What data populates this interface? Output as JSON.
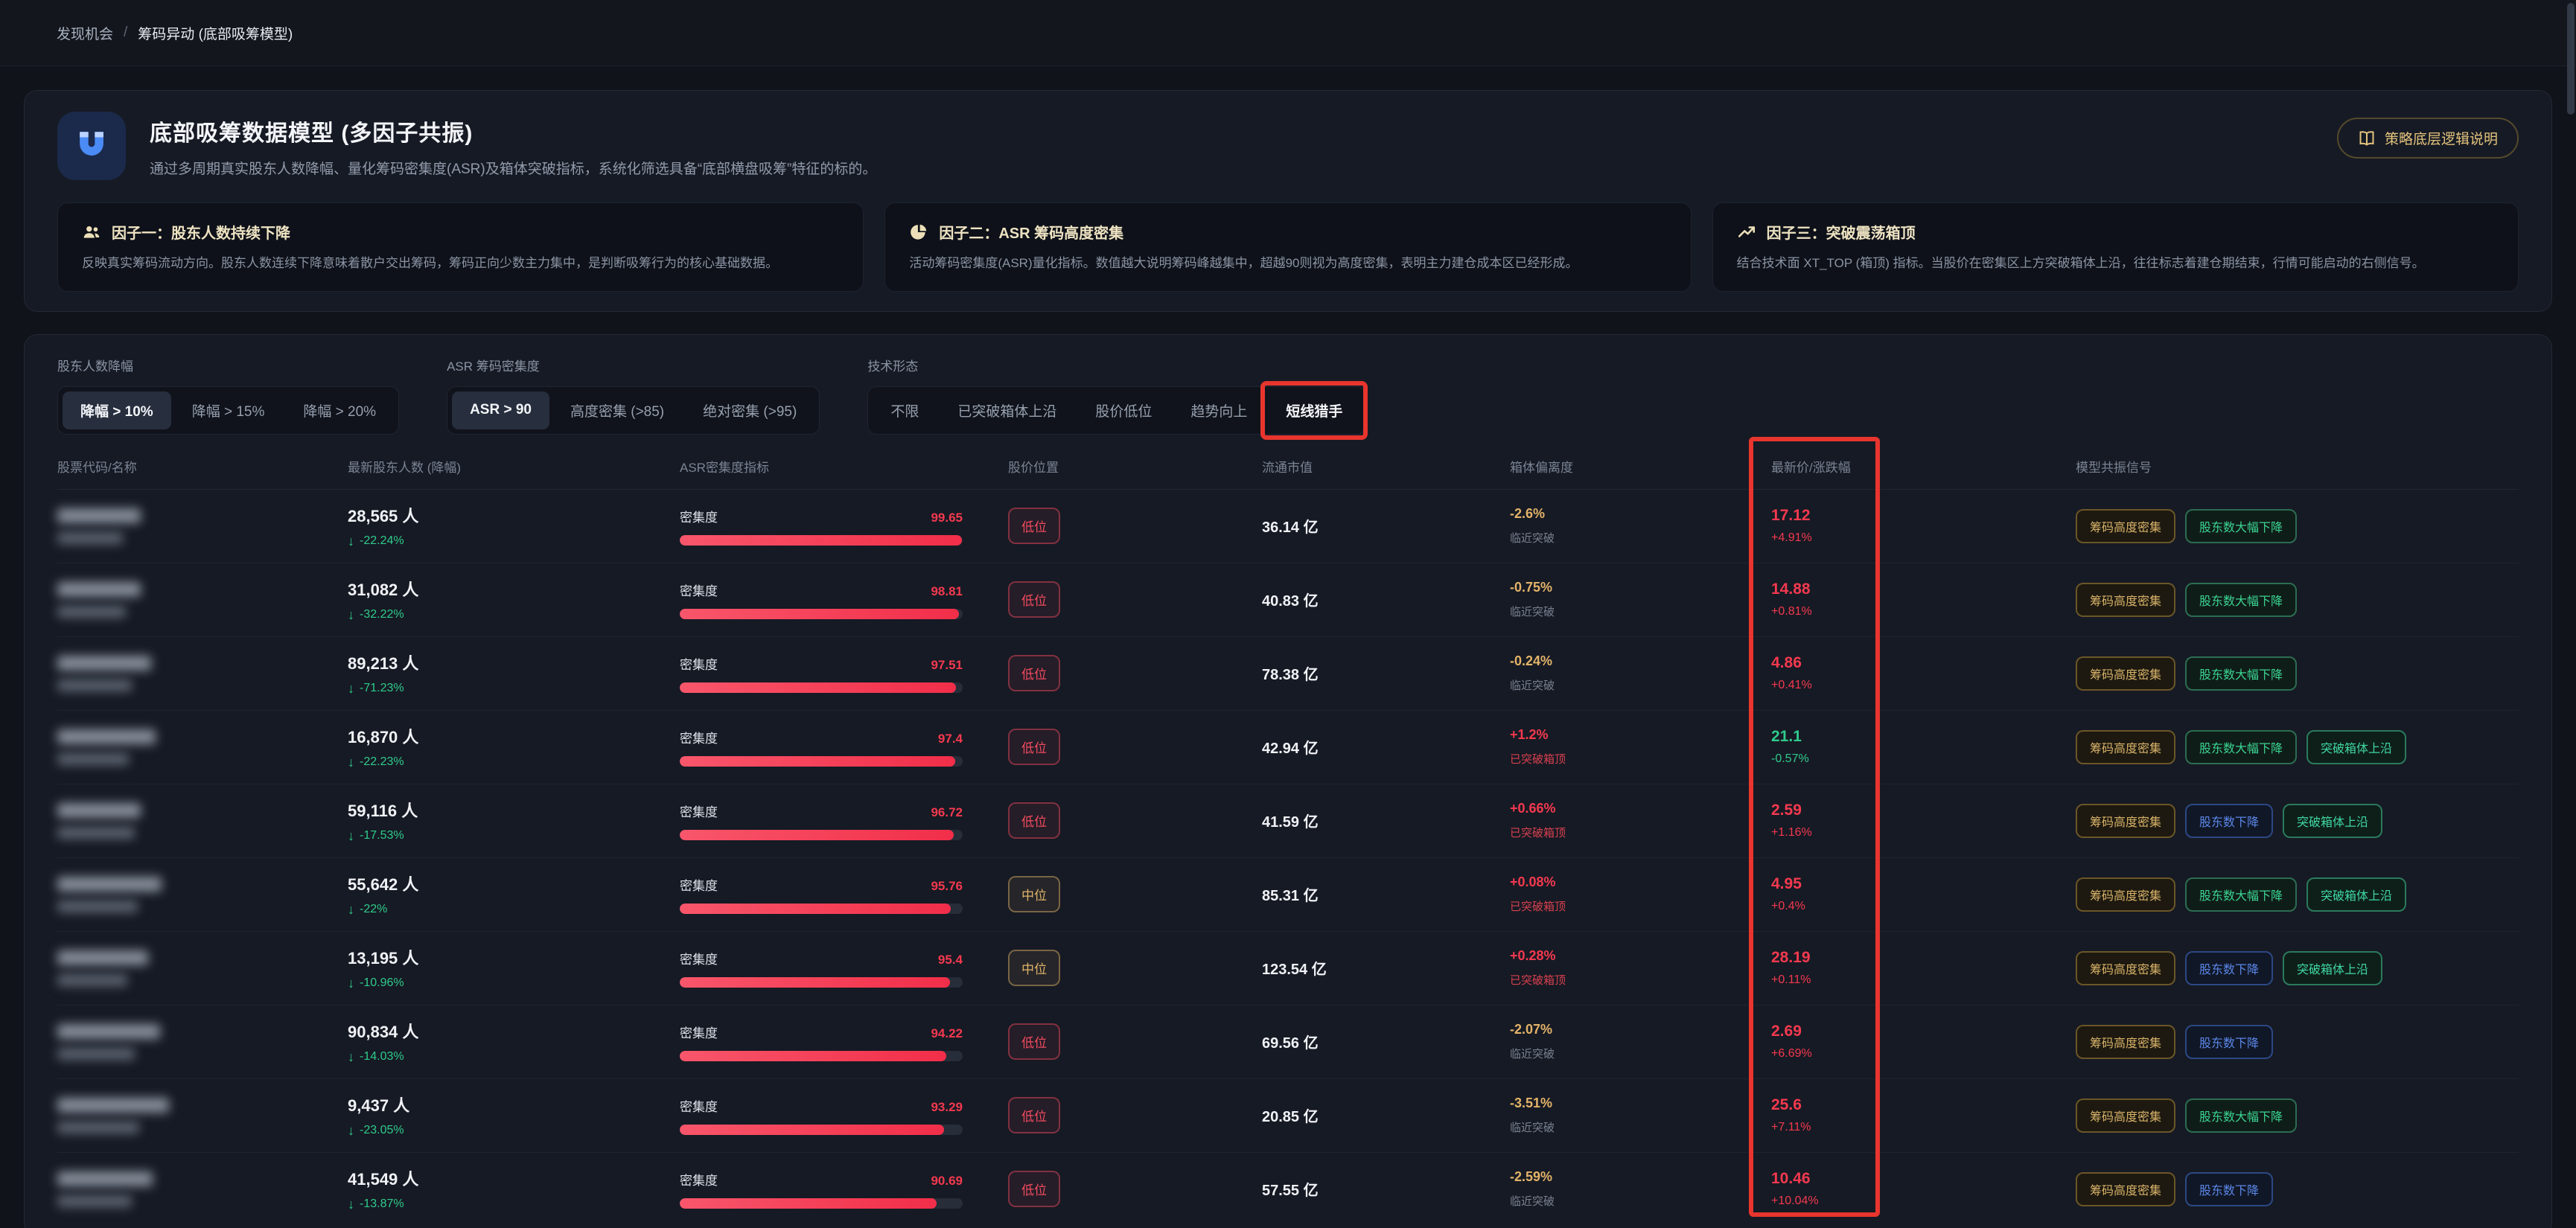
{
  "breadcrumb": {
    "section": "发现机会",
    "separator": "/",
    "page": "筹码异动 (底部吸筹模型)"
  },
  "header": {
    "icon": "magnet-icon",
    "title": "底部吸筹数据模型 (多因子共振)",
    "subtitle": "通过多周期真实股东人数降幅、量化筹码密集度(ASR)及箱体突破指标，系统化筛选具备“底部横盘吸筹”特征的标的。",
    "doc_button": "策略底层逻辑说明",
    "doc_button_icon": "book-icon"
  },
  "factors": [
    {
      "icon": "users-icon",
      "title": "因子一：股东人数持续下降",
      "desc": "反映真实筹码流动方向。股东人数连续下降意味着散户交出筹码，筹码正向少数主力集中，是判断吸筹行为的核心基础数据。"
    },
    {
      "icon": "pie-chart-icon",
      "title": "因子二：ASR 筹码高度密集",
      "desc": "活动筹码密集度(ASR)量化指标。数值越大说明筹码峰越集中，超越90则视为高度密集，表明主力建仓成本区已经形成。"
    },
    {
      "icon": "trend-up-icon",
      "title": "因子三：突破震荡箱顶",
      "desc": "结合技术面 XT_TOP (箱顶) 指标。当股价在密集区上方突破箱体上沿，往往标志着建仓期结束，行情可能启动的右侧信号。"
    }
  ],
  "filters": [
    {
      "label": "股东人数降幅",
      "options": [
        {
          "text": "降幅 > 10%",
          "active": true
        },
        {
          "text": "降幅 > 15%"
        },
        {
          "text": "降幅 > 20%"
        }
      ]
    },
    {
      "label": "ASR 筹码密集度",
      "options": [
        {
          "text": "ASR > 90",
          "active": true
        },
        {
          "text": "高度密集 (>85)"
        },
        {
          "text": "绝对密集 (>95)"
        }
      ]
    },
    {
      "label": "技术形态",
      "options": [
        {
          "text": "不限"
        },
        {
          "text": "已突破箱体上沿"
        },
        {
          "text": "股价低位"
        },
        {
          "text": "趋势向上"
        },
        {
          "text": "短线猎手",
          "highlighted": true,
          "annotated": true
        }
      ]
    }
  ],
  "table": {
    "columns": [
      "股票代码/名称",
      "最新股东人数 (降幅)",
      "ASR密集度指标",
      "股价位置",
      "流通市值",
      "箱体偏离度",
      "最新价/涨跌幅",
      "模型共振信号"
    ],
    "asr_label": "密集度",
    "names_redacted": true,
    "rows": [
      {
        "holders": "28,565 人",
        "holders_change": "-22.24%",
        "asr": "99.65",
        "position": "低位",
        "position_level": "low",
        "cap": "36.14 亿",
        "deviation": "-2.6%",
        "deviation_note": "临近突破",
        "deviation_state": "near",
        "price": "17.12",
        "price_change": "+4.91%",
        "price_dir": "up",
        "signals": [
          {
            "text": "筹码高度密集",
            "type": "gold"
          },
          {
            "text": "股东数大幅下降",
            "type": "green"
          }
        ]
      },
      {
        "holders": "31,082 人",
        "holders_change": "-32.22%",
        "asr": "98.81",
        "position": "低位",
        "position_level": "low",
        "cap": "40.83 亿",
        "deviation": "-0.75%",
        "deviation_note": "临近突破",
        "deviation_state": "near",
        "price": "14.88",
        "price_change": "+0.81%",
        "price_dir": "up",
        "signals": [
          {
            "text": "筹码高度密集",
            "type": "gold"
          },
          {
            "text": "股东数大幅下降",
            "type": "green"
          }
        ]
      },
      {
        "holders": "89,213 人",
        "holders_change": "-71.23%",
        "asr": "97.51",
        "position": "低位",
        "position_level": "low",
        "cap": "78.38 亿",
        "deviation": "-0.24%",
        "deviation_note": "临近突破",
        "deviation_state": "near",
        "price": "4.86",
        "price_change": "+0.41%",
        "price_dir": "up",
        "signals": [
          {
            "text": "筹码高度密集",
            "type": "gold"
          },
          {
            "text": "股东数大幅下降",
            "type": "green"
          }
        ]
      },
      {
        "holders": "16,870 人",
        "holders_change": "-22.23%",
        "asr": "97.4",
        "position": "低位",
        "position_level": "low",
        "cap": "42.94 亿",
        "deviation": "+1.2%",
        "deviation_note": "已突破箱顶",
        "deviation_state": "broken",
        "price": "21.1",
        "price_change": "-0.57%",
        "price_dir": "down",
        "signals": [
          {
            "text": "筹码高度密集",
            "type": "gold"
          },
          {
            "text": "股东数大幅下降",
            "type": "green"
          },
          {
            "text": "突破箱体上沿",
            "type": "teal"
          }
        ]
      },
      {
        "holders": "59,116 人",
        "holders_change": "-17.53%",
        "asr": "96.72",
        "position": "低位",
        "position_level": "low",
        "cap": "41.59 亿",
        "deviation": "+0.66%",
        "deviation_note": "已突破箱顶",
        "deviation_state": "broken",
        "price": "2.59",
        "price_change": "+1.16%",
        "price_dir": "up",
        "signals": [
          {
            "text": "筹码高度密集",
            "type": "gold"
          },
          {
            "text": "股东数下降",
            "type": "blue"
          },
          {
            "text": "突破箱体上沿",
            "type": "teal"
          }
        ]
      },
      {
        "holders": "55,642 人",
        "holders_change": "-22%",
        "asr": "95.76",
        "position": "中位",
        "position_level": "mid",
        "cap": "85.31 亿",
        "deviation": "+0.08%",
        "deviation_note": "已突破箱顶",
        "deviation_state": "broken",
        "price": "4.95",
        "price_change": "+0.4%",
        "price_dir": "up",
        "signals": [
          {
            "text": "筹码高度密集",
            "type": "gold"
          },
          {
            "text": "股东数大幅下降",
            "type": "green"
          },
          {
            "text": "突破箱体上沿",
            "type": "teal"
          }
        ]
      },
      {
        "holders": "13,195 人",
        "holders_change": "-10.96%",
        "asr": "95.4",
        "position": "中位",
        "position_level": "mid",
        "cap": "123.54 亿",
        "deviation": "+0.28%",
        "deviation_note": "已突破箱顶",
        "deviation_state": "broken",
        "price": "28.19",
        "price_change": "+0.11%",
        "price_dir": "up",
        "signals": [
          {
            "text": "筹码高度密集",
            "type": "gold"
          },
          {
            "text": "股东数下降",
            "type": "blue"
          },
          {
            "text": "突破箱体上沿",
            "type": "teal"
          }
        ]
      },
      {
        "holders": "90,834 人",
        "holders_change": "-14.03%",
        "asr": "94.22",
        "position": "低位",
        "position_level": "low",
        "cap": "69.56 亿",
        "deviation": "-2.07%",
        "deviation_note": "临近突破",
        "deviation_state": "near",
        "price": "2.69",
        "price_change": "+6.69%",
        "price_dir": "up",
        "signals": [
          {
            "text": "筹码高度密集",
            "type": "gold"
          },
          {
            "text": "股东数下降",
            "type": "blue"
          }
        ]
      },
      {
        "holders": "9,437 人",
        "holders_change": "-23.05%",
        "asr": "93.29",
        "position": "低位",
        "position_level": "low",
        "cap": "20.85 亿",
        "deviation": "-3.51%",
        "deviation_note": "临近突破",
        "deviation_state": "near",
        "price": "25.6",
        "price_change": "+7.11%",
        "price_dir": "up",
        "signals": [
          {
            "text": "筹码高度密集",
            "type": "gold"
          },
          {
            "text": "股东数大幅下降",
            "type": "green"
          }
        ]
      },
      {
        "holders": "41,549 人",
        "holders_change": "-13.87%",
        "asr": "90.69",
        "position": "低位",
        "position_level": "low",
        "cap": "57.55 亿",
        "deviation": "-2.59%",
        "deviation_note": "临近突破",
        "deviation_state": "near",
        "price": "10.46",
        "price_change": "+10.04%",
        "price_dir": "up",
        "signals": [
          {
            "text": "筹码高度密集",
            "type": "gold"
          },
          {
            "text": "股东数下降",
            "type": "blue"
          }
        ]
      }
    ]
  },
  "annotations": {
    "highlighted_filter": "短线猎手",
    "highlighted_column": "最新价/涨跌幅",
    "color": "#e8352e"
  },
  "colors": {
    "accent_red": "#f4394f",
    "accent_green": "#2fcb8b",
    "accent_gold": "#d8b269",
    "accent_blue": "#5b87e8",
    "accent_teal": "#3fd6a0",
    "doc_button_gold": "#e4c47d",
    "annotation_red": "#e8352e"
  }
}
